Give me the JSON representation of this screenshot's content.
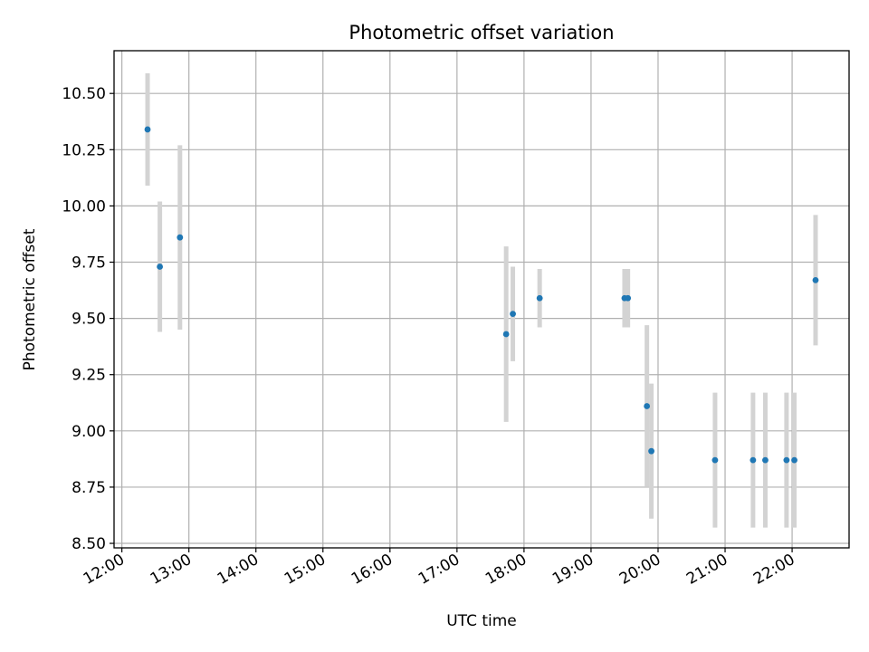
{
  "chart_data": {
    "type": "scatter",
    "title": "Photometric offset variation",
    "xlabel": "UTC time",
    "ylabel": "Photometric offset",
    "xlim": [
      "11:53",
      "22:51"
    ],
    "ylim": [
      8.48,
      10.69
    ],
    "xticks": [
      "12:00",
      "13:00",
      "14:00",
      "15:00",
      "16:00",
      "17:00",
      "18:00",
      "19:00",
      "20:00",
      "21:00",
      "22:00"
    ],
    "yticks": [
      "8.50",
      "8.75",
      "9.00",
      "9.25",
      "9.50",
      "9.75",
      "10.00",
      "10.25",
      "10.50"
    ],
    "grid": true,
    "colors": {
      "marker": "#1f77b4",
      "errorbar": "#d3d3d3"
    },
    "series": [
      {
        "points": [
          {
            "x": "12:23",
            "y": 10.34,
            "err": 0.25
          },
          {
            "x": "12:34",
            "y": 9.73,
            "err": 0.29
          },
          {
            "x": "12:52",
            "y": 9.86,
            "err": 0.41
          },
          {
            "x": "17:44",
            "y": 9.43,
            "err": 0.39
          },
          {
            "x": "17:50",
            "y": 9.52,
            "err": 0.21
          },
          {
            "x": "18:14",
            "y": 9.59,
            "err": 0.13
          },
          {
            "x": "19:30",
            "y": 9.59,
            "err": 0.13
          },
          {
            "x": "19:33",
            "y": 9.59,
            "err": 0.13
          },
          {
            "x": "19:50",
            "y": 9.11,
            "err": 0.36
          },
          {
            "x": "19:54",
            "y": 8.91,
            "err": 0.3
          },
          {
            "x": "20:51",
            "y": 8.87,
            "err": 0.3
          },
          {
            "x": "21:25",
            "y": 8.87,
            "err": 0.3
          },
          {
            "x": "21:36",
            "y": 8.87,
            "err": 0.3
          },
          {
            "x": "21:55",
            "y": 8.87,
            "err": 0.3
          },
          {
            "x": "22:02",
            "y": 8.87,
            "err": 0.3
          },
          {
            "x": "22:21",
            "y": 9.67,
            "err": 0.29
          }
        ]
      }
    ]
  }
}
